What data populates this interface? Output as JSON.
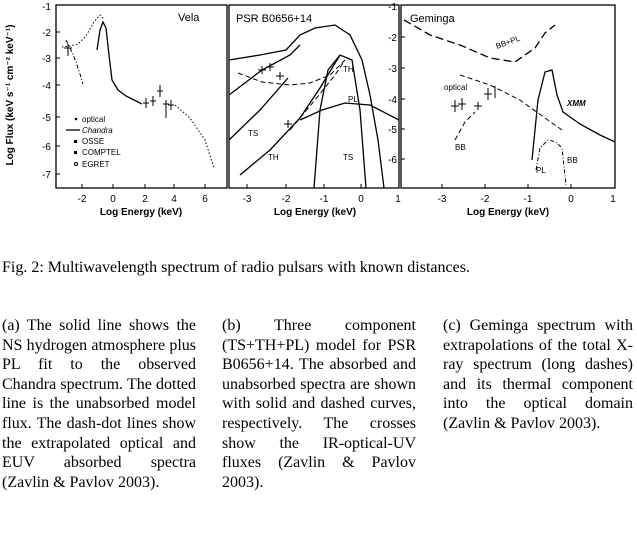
{
  "figure": {
    "y_axis_label": "Log Flux (keV s⁻¹ cm⁻² keV⁻¹)",
    "panels": [
      {
        "title": "Vela",
        "x_label": "Log Energy (keV)",
        "x_ticks": [
          "-2",
          "0",
          "2",
          "4",
          "6"
        ],
        "y_ticks": [
          "-1",
          "-2",
          "-3",
          "-4",
          "-5",
          "-6",
          "-7"
        ],
        "legend": [
          "optical",
          "Chandra",
          "OSSE",
          "COMPTEL",
          "EGRET"
        ]
      },
      {
        "title": "PSR B0656+14",
        "x_label": "Log Energy (keV)",
        "x_ticks": [
          "-3",
          "-2",
          "-1",
          "0",
          "1"
        ],
        "curve_labels": [
          "TH",
          "PL",
          "TS",
          "TH",
          "TS"
        ]
      },
      {
        "title": "Geminga",
        "x_label": "Log Energy (keV)",
        "x_ticks": [
          "-3",
          "-2",
          "-1",
          "0",
          "1"
        ],
        "y_ticks": [
          "-1",
          "-2",
          "-3",
          "-4",
          "-5",
          "-6"
        ],
        "curve_labels": [
          "BB+PL",
          "optical",
          "XMM",
          "BB",
          "PL",
          "BB"
        ]
      }
    ]
  },
  "caption": "Fig. 2: Multiwavelength spectrum of radio pulsars with known distances.",
  "subcaptions": {
    "a": "(a) The solid line shows the NS hydrogen atmosphere plus PL fit to the observed Chandra spectrum. The dotted line is the unabsorbed model flux. The dash-dot lines show the extrapolated optical and EUV absorbed spectra (Zavlin & Pavlov 2003).",
    "b": "(b) Three component (TS+TH+PL) model for PSR B0656+14. The absorbed and unabsorbed spectra are shown with solid and dashed curves, respectively. The crosses show the IR-optical-UV fluxes (Zavlin & Pavlov 2003).",
    "c": "(c) Geminga spectrum with extrapolations of the total X-ray spectrum (long dashes) and its thermal component into the optical domain (Zavlin & Pavlov 2003)."
  }
}
